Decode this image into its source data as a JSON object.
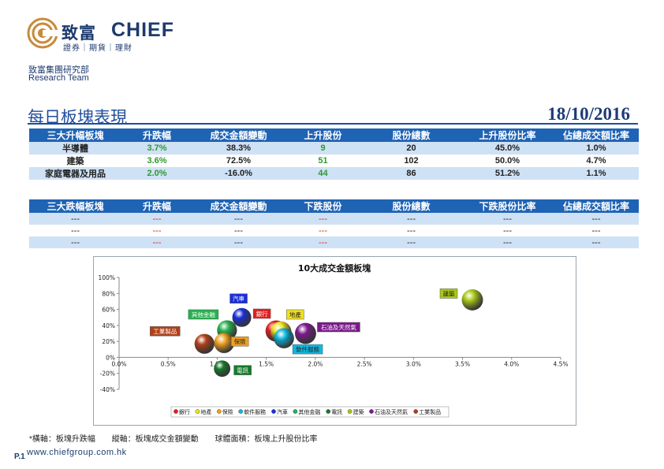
{
  "brand": {
    "name_cn": "致富",
    "name_en": "CHIEF",
    "subtitle": "證券｜期貨｜理財",
    "dept_cn": "致富集團研究部",
    "dept_en": "Research Team"
  },
  "page": {
    "title": "每日板塊表現",
    "date": "18/10/2016"
  },
  "colors": {
    "header_blue": "#1f63b5",
    "row_alt": "#cfe1f5",
    "up_green": "#2e9a2e",
    "down_red": "#d9281e"
  },
  "gainers": {
    "headers": [
      "三大升幅板塊",
      "升跌幅",
      "成交金額變動",
      "上升股份",
      "股份總數",
      "上升股份比率",
      "佔總成交額比率"
    ],
    "rows": [
      [
        "半導體",
        "3.7%",
        "38.3%",
        "9",
        "20",
        "45.0%",
        "1.0%"
      ],
      [
        "建築",
        "3.6%",
        "72.5%",
        "51",
        "102",
        "50.0%",
        "4.7%"
      ],
      [
        "家庭電器及用品",
        "2.0%",
        "-16.0%",
        "44",
        "86",
        "51.2%",
        "1.1%"
      ]
    ]
  },
  "losers": {
    "headers": [
      "三大跌幅板塊",
      "升跌幅",
      "成交金額變動",
      "下跌股份",
      "股份總數",
      "下跌股份比率",
      "佔總成交額比率"
    ],
    "rows": [
      [
        "---",
        "---",
        "---",
        "---",
        "---",
        "---",
        "---"
      ],
      [
        "---",
        "---",
        "---",
        "---",
        "---",
        "---",
        "---"
      ],
      [
        "---",
        "---",
        "---",
        "---",
        "---",
        "---",
        "---"
      ]
    ]
  },
  "chart_data": {
    "type": "scatter",
    "title": "10大成交金額板塊",
    "xlabel": "",
    "ylabel": "",
    "xlim": [
      0,
      4.5
    ],
    "ylim": [
      -40,
      100
    ],
    "x_ticks": [
      "0.0%",
      "0.5%",
      "1.0%",
      "1.5%",
      "2.0%",
      "2.5%",
      "3.0%",
      "3.5%",
      "4.0%",
      "4.5%"
    ],
    "y_ticks": [
      "100%",
      "80%",
      "60%",
      "40%",
      "20%",
      "0%",
      "-20%",
      "-40%"
    ],
    "series": [
      {
        "name": "銀行",
        "x": 1.6,
        "y": 33,
        "size": 0.5,
        "color": "#e02020"
      },
      {
        "name": "地產",
        "x": 1.65,
        "y": 32,
        "size": 0.48,
        "color": "#f0e020"
      },
      {
        "name": "保險",
        "x": 1.07,
        "y": 18,
        "size": 0.45,
        "color": "#f0a020"
      },
      {
        "name": "軟件服務",
        "x": 1.68,
        "y": 24,
        "size": 0.45,
        "color": "#10b8e0"
      },
      {
        "name": "汽車",
        "x": 1.25,
        "y": 50,
        "size": 0.4,
        "color": "#1a2fd8"
      },
      {
        "name": "其他金融",
        "x": 1.1,
        "y": 34,
        "size": 0.44,
        "color": "#28b050"
      },
      {
        "name": "電訊",
        "x": 1.05,
        "y": -14,
        "size": 0.3,
        "color": "#167a2a"
      },
      {
        "name": "建築",
        "x": 3.6,
        "y": 72,
        "size": 0.5,
        "color": "#a8c818"
      },
      {
        "name": "石油及天然氣",
        "x": 1.9,
        "y": 30,
        "size": 0.5,
        "color": "#7a1a8a"
      },
      {
        "name": "工業製品",
        "x": 0.87,
        "y": 17,
        "size": 0.44,
        "color": "#b04018"
      }
    ],
    "label_colors": {
      "銀行": "#e02020",
      "地產": "#f0e020",
      "保險": "#f0a020",
      "軟件服務": "#10b8e0",
      "汽車": "#1a2fd8",
      "其他金融": "#28b050",
      "電訊": "#167a2a",
      "建築": "#a8c818",
      "石油及天然氣": "#7a1a8a",
      "工業製品": "#b04018"
    },
    "legend": [
      "銀行",
      "地產",
      "保險",
      "軟件服務",
      "汽車",
      "其他金融",
      "電訊",
      "建築",
      "石油及天然氣",
      "工業製品"
    ],
    "legend_placement": "bottom",
    "grid": false
  },
  "footnote": {
    "x": "*橫軸：板塊升跌幅",
    "y": "縱軸：板塊成交金額變動",
    "area": "球體面積：板塊上升股份比率"
  },
  "footer": {
    "page": "P.1",
    "url": "www.chiefgroup.com.hk"
  }
}
